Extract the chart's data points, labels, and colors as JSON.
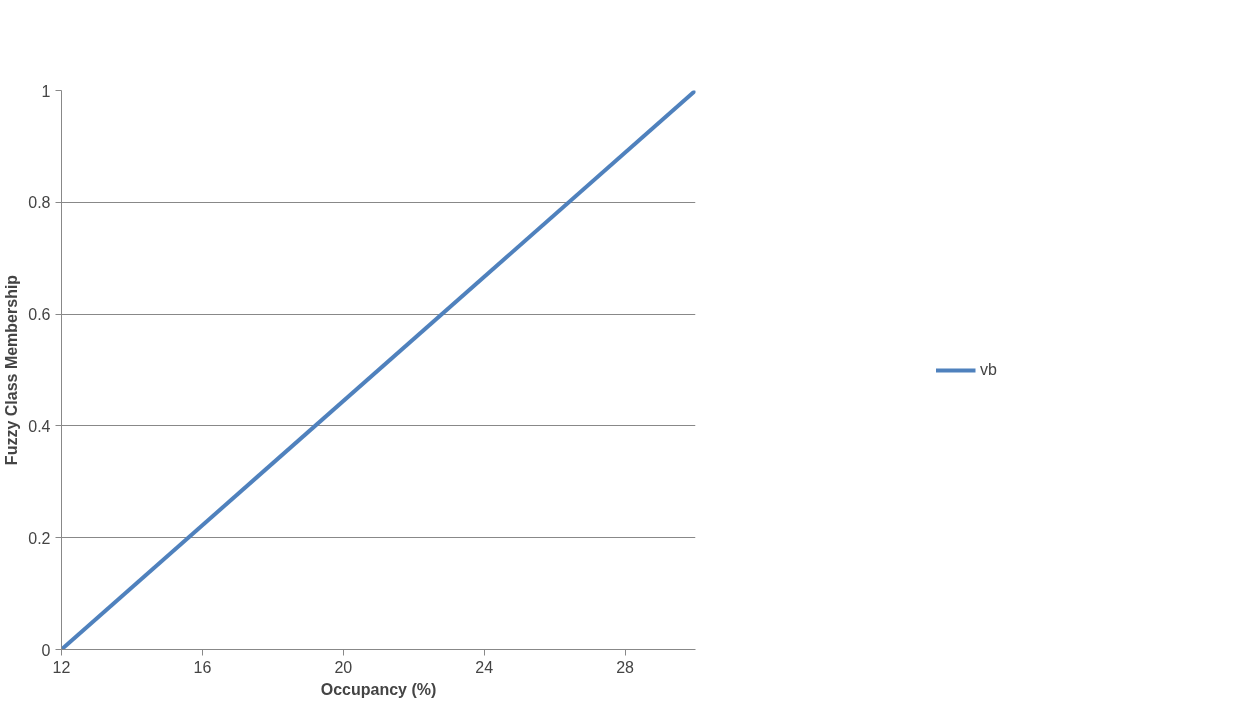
{
  "chart_data": {
    "type": "line",
    "xlabel": "Occupancy (%)",
    "ylabel": "Fuzzy Class Membership",
    "x": [
      12,
      30
    ],
    "series": [
      {
        "name": "vb",
        "color": "#4f81bd",
        "values": [
          0,
          1
        ]
      }
    ],
    "xlim": [
      12,
      30
    ],
    "xticks": [
      12,
      16,
      20,
      24,
      28
    ],
    "ylim": [
      0,
      1
    ],
    "yticks": [
      0,
      0.2,
      0.4,
      0.6,
      0.8,
      1
    ],
    "grid": "y",
    "legend": "right",
    "marker": "none",
    "line_style": "solid"
  }
}
